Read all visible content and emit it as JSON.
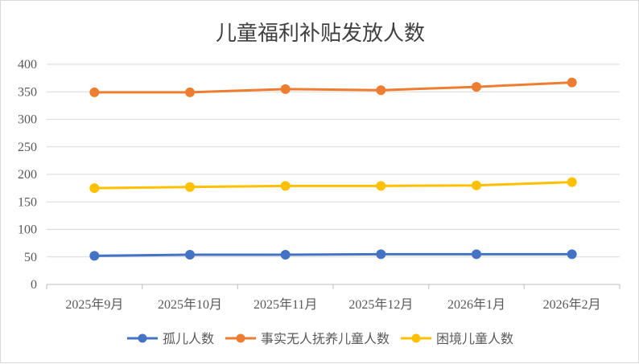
{
  "chart_data": {
    "type": "line",
    "title": "儿童福利补贴发放人数",
    "categories": [
      "2025年9月",
      "2025年10月",
      "2025年11月",
      "2025年12月",
      "2026年1月",
      "2026年2月"
    ],
    "yticks": [
      "0",
      "50",
      "100",
      "150",
      "200",
      "250",
      "300",
      "350",
      "400"
    ],
    "ylim": [
      0,
      400
    ],
    "grid": true,
    "legend_position": "bottom",
    "series": [
      {
        "name": "孤儿人数",
        "color": "#4472C4",
        "values": [
          52,
          54,
          54,
          55,
          55,
          55
        ]
      },
      {
        "name": "事实无人抚养儿童人数",
        "color": "#ED7D31",
        "values": [
          349,
          349,
          355,
          353,
          359,
          367
        ]
      },
      {
        "name": "困境儿童人数",
        "color": "#FFC000",
        "values": [
          175,
          177,
          179,
          179,
          180,
          186
        ]
      }
    ]
  }
}
